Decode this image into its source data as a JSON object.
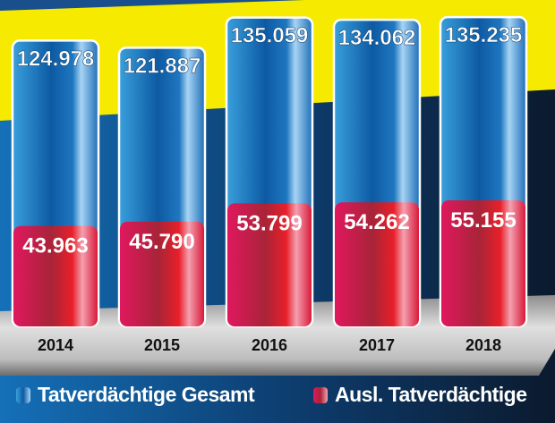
{
  "chart_data": {
    "type": "bar",
    "categories": [
      "2014",
      "2015",
      "2016",
      "2017",
      "2018"
    ],
    "series": [
      {
        "name": "Tatverdächtige Gesamt",
        "values": [
          124978,
          121887,
          135059,
          134062,
          135235
        ],
        "labels": [
          "124.978",
          "121.887",
          "135.059",
          "134.062",
          "135.235"
        ],
        "color": "#1f6fb5"
      },
      {
        "name": "Ausl. Tatverdächtige",
        "values": [
          43963,
          45790,
          53799,
          54262,
          55155
        ],
        "labels": [
          "43.963",
          "45.790",
          "53.799",
          "54.262",
          "55.155"
        ],
        "color": "#d81f4a"
      }
    ],
    "title": "",
    "xlabel": "",
    "ylabel": "",
    "ylim": [
      0,
      140000
    ],
    "grid": false,
    "legend": "bottom"
  },
  "colors": {
    "yellow": "#f6ea00",
    "navy": "#0d1e35",
    "blue": "#0f5fa8"
  }
}
